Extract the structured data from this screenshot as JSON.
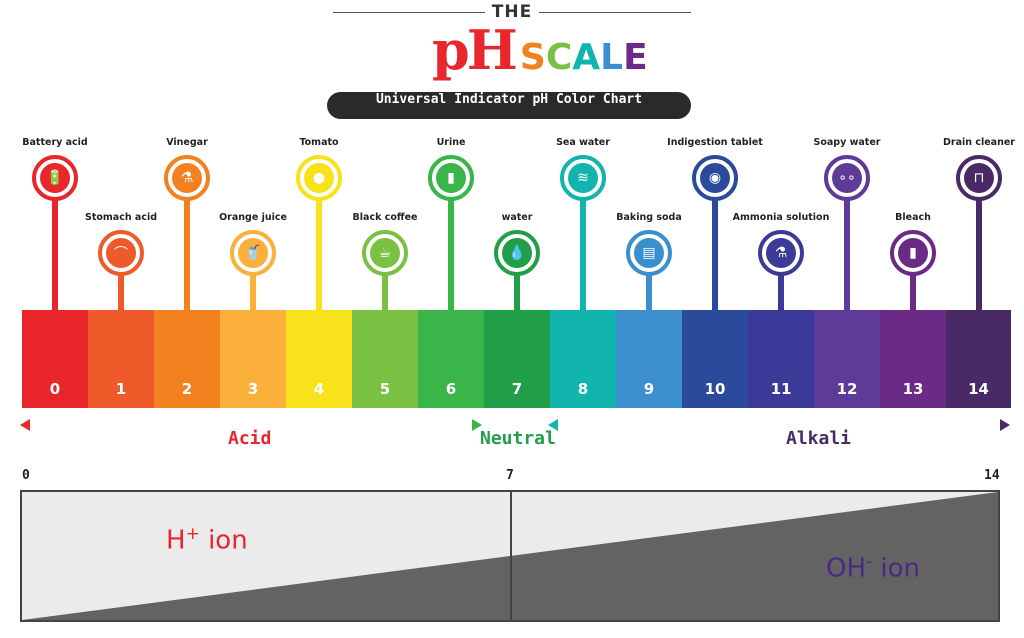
{
  "title": {
    "the": "THE",
    "ph": "pH",
    "scale": "SCALE"
  },
  "subtitle": "Universal Indicator pH Color Chart",
  "colors": {
    "segments": [
      "#e8262c",
      "#ef5a2a",
      "#f4811f",
      "#fbb03b",
      "#f7e21b",
      "#7ac143",
      "#39b54a",
      "#209e48",
      "#12b5ad",
      "#3b8fcf",
      "#2c4a9c",
      "#3c3a99",
      "#5e3a99",
      "#6b2a86",
      "#4a2a66"
    ],
    "acid": "#e8262c",
    "neutral": "#209e48",
    "alkali": "#4a2a66"
  },
  "scale": {
    "numbers": [
      "0",
      "1",
      "2",
      "3",
      "4",
      "5",
      "6",
      "7",
      "8",
      "9",
      "10",
      "11",
      "12",
      "13",
      "14"
    ]
  },
  "items": [
    {
      "label": "Battery acid",
      "ph": 0,
      "row": "high",
      "icon": "battery-icon",
      "glyph": "🔋"
    },
    {
      "label": "Stomach acid",
      "ph": 1,
      "row": "low",
      "icon": "stomach-icon",
      "glyph": "⌒"
    },
    {
      "label": "Vinegar",
      "ph": 2,
      "row": "high",
      "icon": "vinegar-bottle-icon",
      "glyph": "⚗"
    },
    {
      "label": "Orange juice",
      "ph": 3,
      "row": "low",
      "icon": "orange-juice-icon",
      "glyph": "🥤"
    },
    {
      "label": "Tomato",
      "ph": 4,
      "row": "high",
      "icon": "tomato-icon",
      "glyph": "●"
    },
    {
      "label": "Black coffee",
      "ph": 5,
      "row": "low",
      "icon": "coffee-icon",
      "glyph": "☕"
    },
    {
      "label": "Urine",
      "ph": 6,
      "row": "high",
      "icon": "urine-sample-icon",
      "glyph": "▮"
    },
    {
      "label": "water",
      "ph": 7,
      "row": "low",
      "icon": "water-drop-icon",
      "glyph": "💧"
    },
    {
      "label": "Sea water",
      "ph": 8,
      "row": "high",
      "icon": "wave-icon",
      "glyph": "≋"
    },
    {
      "label": "Baking soda",
      "ph": 9,
      "row": "low",
      "icon": "baking-soda-icon",
      "glyph": "▤"
    },
    {
      "label": "Indigestion tablet",
      "ph": 10,
      "row": "high",
      "icon": "tablet-icon",
      "glyph": "◉"
    },
    {
      "label": "Ammonia solution",
      "ph": 11,
      "row": "low",
      "icon": "flask-icon",
      "glyph": "⚗"
    },
    {
      "label": "Soapy water",
      "ph": 12,
      "row": "high",
      "icon": "soap-bubbles-icon",
      "glyph": "∘∘"
    },
    {
      "label": "Bleach",
      "ph": 13,
      "row": "low",
      "icon": "bleach-bottle-icon",
      "glyph": "▮"
    },
    {
      "label": "Drain cleaner",
      "ph": 14,
      "row": "high",
      "icon": "drain-pipe-icon",
      "glyph": "⊓"
    }
  ],
  "regions": {
    "acid": "Acid",
    "neutral": "Neutral",
    "alkali": "Alkali"
  },
  "ions": {
    "ticks": [
      "0",
      "7",
      "14"
    ],
    "h_base": "H",
    "h_sup": "+",
    "h_suffix": " ion",
    "oh_base": "OH",
    "oh_sup": "-",
    "oh_suffix": " ion",
    "h_color": "#e8262c",
    "oh_color": "#4a2a86"
  }
}
